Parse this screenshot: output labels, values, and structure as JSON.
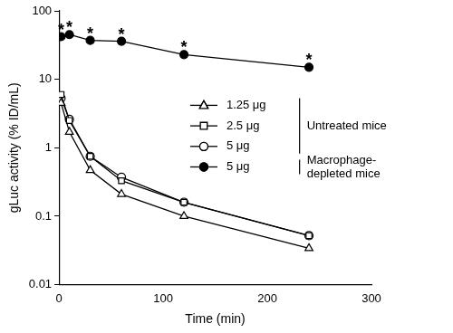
{
  "chart_data": {
    "type": "line",
    "x_label": "Time (min)",
    "y_label": "gLuc activity (% ID/mL)",
    "x": [
      2,
      10,
      30,
      60,
      120,
      240
    ],
    "series": [
      {
        "name": "1.25 μg",
        "group": "Untreated mice",
        "color": "#000000",
        "marker": "triangle-open",
        "values": [
          4.5,
          1.7,
          0.47,
          0.21,
          0.1,
          0.034
        ]
      },
      {
        "name": "2.5 μg",
        "group": "Untreated mice",
        "color": "#000000",
        "marker": "square-open",
        "values": [
          6,
          2.5,
          0.75,
          0.33,
          0.16,
          0.052
        ]
      },
      {
        "name": "5 μg",
        "group": "Untreated mice",
        "color": "#000000",
        "marker": "circle-open",
        "values": [
          5.3,
          2.6,
          0.75,
          0.37,
          0.16,
          0.052
        ]
      },
      {
        "name": "5 μg",
        "group": "Macrophage-depleted mice",
        "color": "#000000",
        "marker": "circle",
        "values": [
          42,
          45,
          37,
          36,
          23,
          15
        ]
      }
    ],
    "annotations": [
      {
        "text": "*",
        "x": 2,
        "y": 42
      },
      {
        "text": "*",
        "x": 10,
        "y": 45
      },
      {
        "text": "*",
        "x": 30,
        "y": 37
      },
      {
        "text": "*",
        "x": 60,
        "y": 36
      },
      {
        "text": "*",
        "x": 120,
        "y": 23
      },
      {
        "text": "*",
        "x": 240,
        "y": 15
      }
    ],
    "xlim": [
      0,
      300
    ],
    "xticks": [
      0,
      100,
      200,
      300
    ],
    "ylim": [
      0.01,
      100
    ],
    "yticks": [
      0.01,
      0.1,
      1,
      10,
      100
    ],
    "log": "y",
    "grid": false
  }
}
